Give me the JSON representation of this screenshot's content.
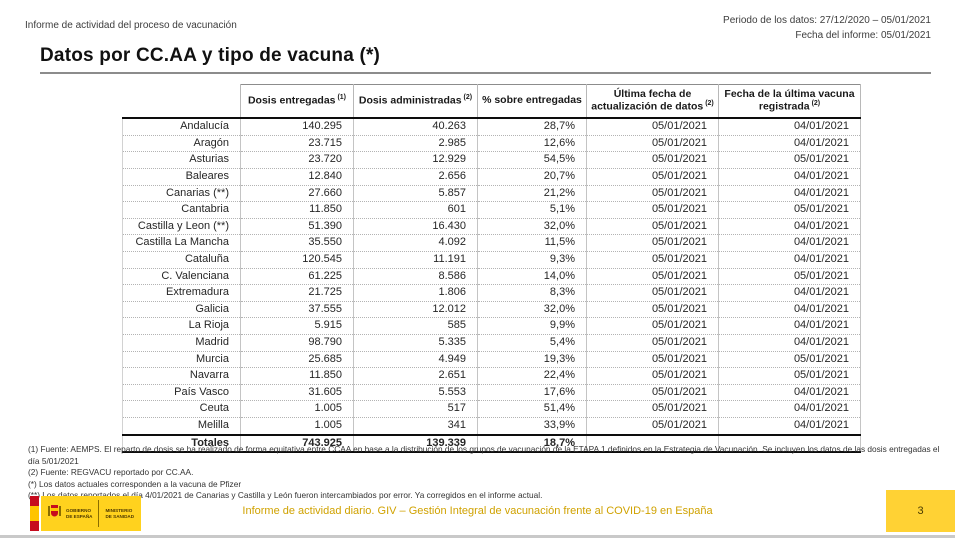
{
  "page": {
    "doc_label": "Informe de actividad del proceso de vacunación",
    "period": "Periodo de los datos: 27/12/2020 – 05/01/2021",
    "report_date": "Fecha del informe: 05/01/2021",
    "title": "Datos por CC.AA y tipo de vacuna (*)"
  },
  "table": {
    "columns": [
      {
        "name": "region",
        "label": "",
        "sup": ""
      },
      {
        "name": "dosis-entregadas",
        "label": "Dosis entregadas",
        "sup": "(1)"
      },
      {
        "name": "dosis-administradas",
        "label": "Dosis administradas",
        "sup": "(2)"
      },
      {
        "name": "pct-sobre-entregadas",
        "label": "% sobre entregadas",
        "sup": ""
      },
      {
        "name": "ultima-actualizacion",
        "label": "Última fecha de actualización de datos",
        "sup": "(2)"
      },
      {
        "name": "fecha-ultima-vacuna",
        "label": "Fecha de la última vacuna registrada",
        "sup": "(2)"
      }
    ],
    "rows": [
      {
        "region": "Andalucía",
        "entregadas": "140.295",
        "administradas": "40.263",
        "pct": "28,7%",
        "actualizacion": "05/01/2021",
        "ultima_vacuna": "04/01/2021"
      },
      {
        "region": "Aragón",
        "entregadas": "23.715",
        "administradas": "2.985",
        "pct": "12,6%",
        "actualizacion": "05/01/2021",
        "ultima_vacuna": "04/01/2021"
      },
      {
        "region": "Asturias",
        "entregadas": "23.720",
        "administradas": "12.929",
        "pct": "54,5%",
        "actualizacion": "05/01/2021",
        "ultima_vacuna": "05/01/2021"
      },
      {
        "region": "Baleares",
        "entregadas": "12.840",
        "administradas": "2.656",
        "pct": "20,7%",
        "actualizacion": "05/01/2021",
        "ultima_vacuna": "04/01/2021"
      },
      {
        "region": "Canarias (**)",
        "entregadas": "27.660",
        "administradas": "5.857",
        "pct": "21,2%",
        "actualizacion": "05/01/2021",
        "ultima_vacuna": "04/01/2021"
      },
      {
        "region": "Cantabria",
        "entregadas": "11.850",
        "administradas": "601",
        "pct": "5,1%",
        "actualizacion": "05/01/2021",
        "ultima_vacuna": "05/01/2021"
      },
      {
        "region": "Castilla y Leon (**)",
        "entregadas": "51.390",
        "administradas": "16.430",
        "pct": "32,0%",
        "actualizacion": "05/01/2021",
        "ultima_vacuna": "04/01/2021"
      },
      {
        "region": "Castilla La Mancha",
        "entregadas": "35.550",
        "administradas": "4.092",
        "pct": "11,5%",
        "actualizacion": "05/01/2021",
        "ultima_vacuna": "04/01/2021"
      },
      {
        "region": "Cataluña",
        "entregadas": "120.545",
        "administradas": "11.191",
        "pct": "9,3%",
        "actualizacion": "05/01/2021",
        "ultima_vacuna": "04/01/2021"
      },
      {
        "region": "C. Valenciana",
        "entregadas": "61.225",
        "administradas": "8.586",
        "pct": "14,0%",
        "actualizacion": "05/01/2021",
        "ultima_vacuna": "05/01/2021"
      },
      {
        "region": "Extremadura",
        "entregadas": "21.725",
        "administradas": "1.806",
        "pct": "8,3%",
        "actualizacion": "05/01/2021",
        "ultima_vacuna": "04/01/2021"
      },
      {
        "region": "Galicia",
        "entregadas": "37.555",
        "administradas": "12.012",
        "pct": "32,0%",
        "actualizacion": "05/01/2021",
        "ultima_vacuna": "04/01/2021"
      },
      {
        "region": "La Rioja",
        "entregadas": "5.915",
        "administradas": "585",
        "pct": "9,9%",
        "actualizacion": "05/01/2021",
        "ultima_vacuna": "04/01/2021"
      },
      {
        "region": "Madrid",
        "entregadas": "98.790",
        "administradas": "5.335",
        "pct": "5,4%",
        "actualizacion": "05/01/2021",
        "ultima_vacuna": "04/01/2021"
      },
      {
        "region": "Murcia",
        "entregadas": "25.685",
        "administradas": "4.949",
        "pct": "19,3%",
        "actualizacion": "05/01/2021",
        "ultima_vacuna": "05/01/2021"
      },
      {
        "region": "Navarra",
        "entregadas": "11.850",
        "administradas": "2.651",
        "pct": "22,4%",
        "actualizacion": "05/01/2021",
        "ultima_vacuna": "05/01/2021"
      },
      {
        "region": "País Vasco",
        "entregadas": "31.605",
        "administradas": "5.553",
        "pct": "17,6%",
        "actualizacion": "05/01/2021",
        "ultima_vacuna": "04/01/2021"
      },
      {
        "region": "Ceuta",
        "entregadas": "1.005",
        "administradas": "517",
        "pct": "51,4%",
        "actualizacion": "05/01/2021",
        "ultima_vacuna": "04/01/2021"
      },
      {
        "region": "Melilla",
        "entregadas": "1.005",
        "administradas": "341",
        "pct": "33,9%",
        "actualizacion": "05/01/2021",
        "ultima_vacuna": "04/01/2021"
      }
    ],
    "totals": {
      "region": "Totales",
      "entregadas": "743.925",
      "administradas": "139.339",
      "pct": "18,7%",
      "actualizacion": "",
      "ultima_vacuna": ""
    }
  },
  "footnotes": [
    "(1) Fuente: AEMPS. El reparto de dosis se ha realizado de forma equitativa entre CCAA en base a la distribución de los grupos de vacunación de la ETAPA 1 definidos en la Estrategia de Vacunación. Se incluyen los datos de las dosis entregadas el día 5/01/2021",
    "(2) Fuente: REGVACU reportado por CC.AA.",
    "(*) Los datos actuales corresponden a la vacuna de Pfizer",
    "(**) Los datos reportados el día 4/01/2021 de Canarias y Castilla y León fueron intercambiados por error. Ya corregidos en el informe actual."
  ],
  "footer": {
    "logo_government": "GOBIERNO\nDE ESPAÑA",
    "logo_ministry": "MINISTERIO\nDE SANIDAD",
    "center_text": "Informe de actividad diario. GIV – Gestión Integral de vacunación frente al COVID-19 en España",
    "page_number": "3"
  },
  "colors": {
    "accent_yellow": "#ffd234",
    "footer_gold": "#d0a200",
    "flag_red": "#c60b1e",
    "flag_yellow": "#ffc400"
  }
}
